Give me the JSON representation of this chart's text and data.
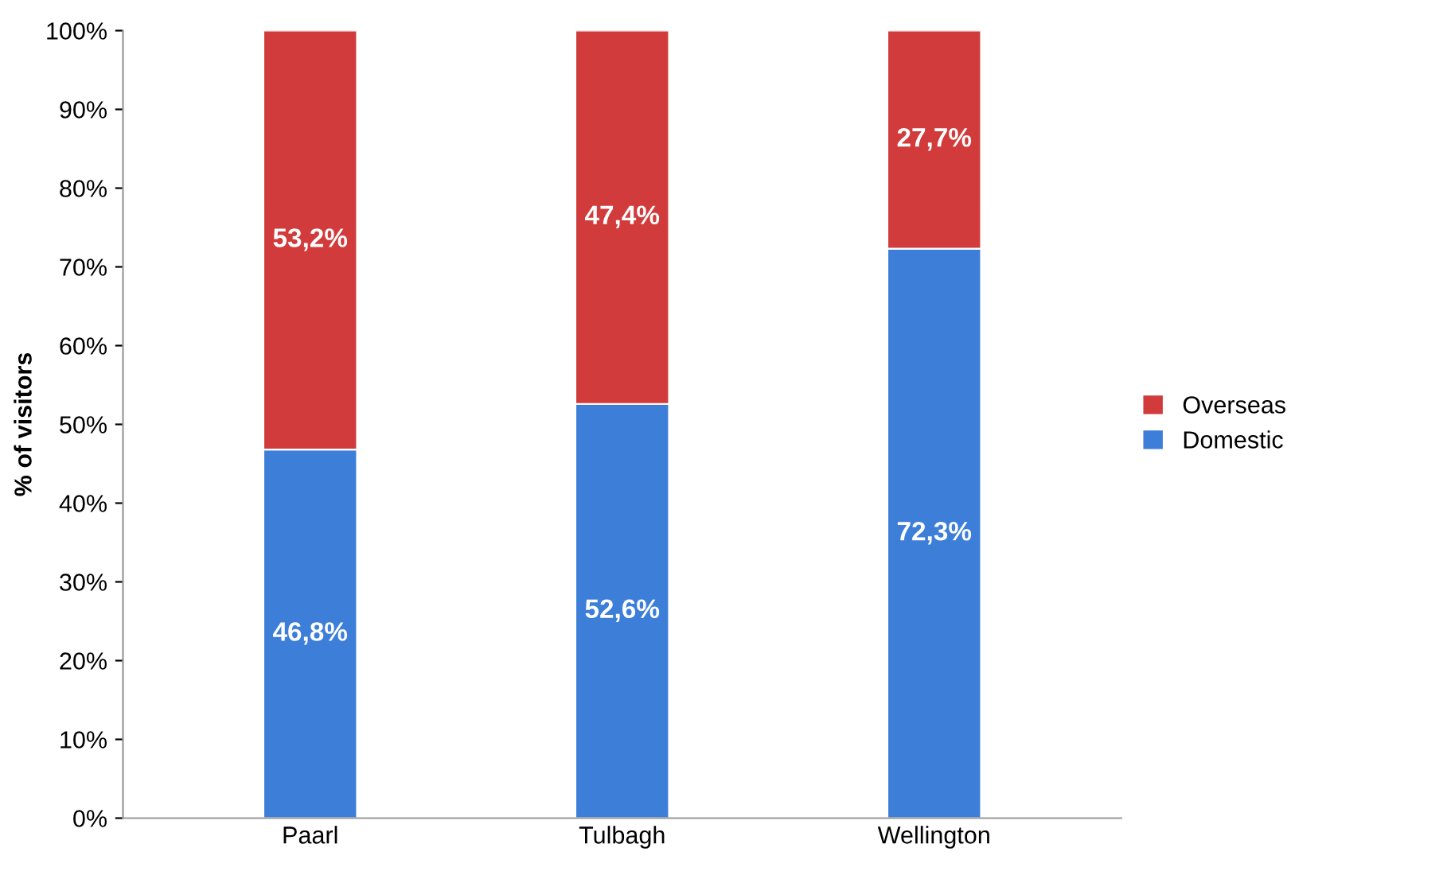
{
  "chart_data": {
    "type": "bar",
    "stacked": true,
    "ylabel": "% of visitors",
    "categories": [
      "Paarl",
      "Tulbagh",
      "Wellington"
    ],
    "series": [
      {
        "name": "Domestic",
        "color": "#3d7fd8",
        "values": [
          46.8,
          52.6,
          72.3
        ],
        "value_labels": [
          "46,8%",
          "52,6%",
          "72,3%"
        ]
      },
      {
        "name": "Overseas",
        "color": "#d23b3b",
        "values": [
          53.2,
          47.4,
          27.7
        ],
        "value_labels": [
          "53,2%",
          "47,4%",
          "27,7%"
        ]
      }
    ],
    "ylim": [
      0,
      100
    ],
    "yticks": [
      {
        "value": 0,
        "label": "0%"
      },
      {
        "value": 10,
        "label": "10%"
      },
      {
        "value": 20,
        "label": "20%"
      },
      {
        "value": 30,
        "label": "30%"
      },
      {
        "value": 40,
        "label": "40%"
      },
      {
        "value": 50,
        "label": "50%"
      },
      {
        "value": 60,
        "label": "60%"
      },
      {
        "value": 70,
        "label": "70%"
      },
      {
        "value": 80,
        "label": "80%"
      },
      {
        "value": 90,
        "label": "90%"
      },
      {
        "value": 100,
        "label": "100%"
      }
    ],
    "grid": false,
    "legend": "right"
  }
}
